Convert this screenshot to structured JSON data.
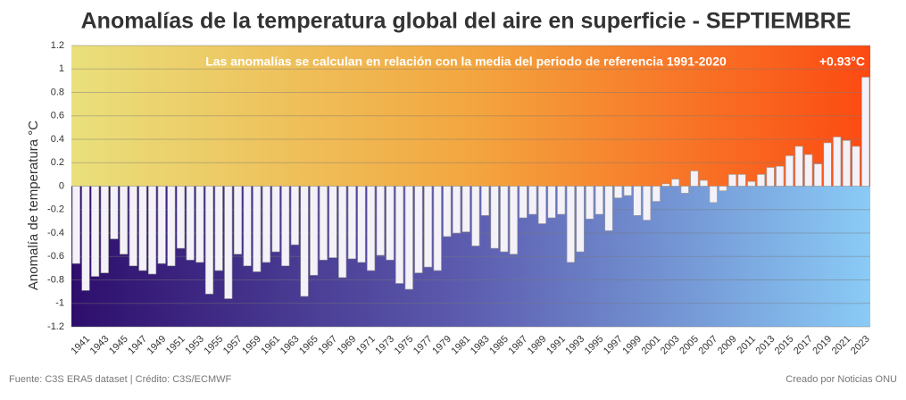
{
  "chart_data": {
    "type": "bar",
    "title": "Anomalías de la temperatura global del aire en superficie - SEPTIEMBRE",
    "subtitle": "Las anomalías se calculan en relación con la media del periodo de referencia 1991-2020",
    "annotation": "+0.93°C",
    "y_label": "Anomalía de temperatura °C",
    "source": "Fuente: C3S ERA5 dataset | Crédito: C3S/ECMWF",
    "credit": "Creado por Noticias ONU",
    "categories": [
      null,
      "1941",
      null,
      "1943",
      null,
      "1945",
      null,
      "1947",
      null,
      "1949",
      null,
      "1951",
      null,
      "1953",
      null,
      "1955",
      null,
      "1957",
      null,
      "1959",
      null,
      "1961",
      null,
      "1963",
      null,
      "1965",
      null,
      "1967",
      null,
      "1969",
      null,
      "1971",
      null,
      "1973",
      null,
      "1975",
      null,
      "1977",
      null,
      "1979",
      null,
      "1981",
      null,
      "1983",
      null,
      "1985",
      null,
      "1987",
      null,
      "1989",
      null,
      "1991",
      null,
      "1993",
      null,
      "1995",
      null,
      "1997",
      null,
      "1999",
      null,
      "2001",
      null,
      "2003",
      null,
      "2005",
      null,
      "2007",
      null,
      "2009",
      null,
      "2011",
      null,
      "2013",
      null,
      "2015",
      null,
      "2017",
      null,
      "2019",
      null,
      "2021",
      null,
      "2023"
    ],
    "values": [
      -0.66,
      -0.89,
      -0.77,
      -0.74,
      -0.45,
      -0.58,
      -0.68,
      -0.72,
      -0.75,
      -0.66,
      -0.68,
      -0.53,
      -0.63,
      -0.65,
      -0.92,
      -0.72,
      -0.96,
      -0.58,
      -0.68,
      -0.73,
      -0.65,
      -0.56,
      -0.68,
      -0.5,
      -0.94,
      -0.76,
      -0.63,
      -0.61,
      -0.78,
      -0.62,
      -0.65,
      -0.72,
      -0.59,
      -0.63,
      -0.83,
      -0.88,
      -0.74,
      -0.69,
      -0.72,
      -0.43,
      -0.4,
      -0.39,
      -0.51,
      -0.25,
      -0.53,
      -0.56,
      -0.58,
      -0.27,
      -0.24,
      -0.32,
      -0.27,
      -0.24,
      -0.65,
      -0.56,
      -0.28,
      -0.24,
      -0.38,
      -0.1,
      -0.08,
      -0.25,
      -0.29,
      -0.13,
      0.02,
      0.06,
      -0.06,
      0.13,
      0.05,
      -0.14,
      -0.04,
      0.1,
      0.1,
      0.04,
      0.1,
      0.16,
      0.17,
      0.26,
      0.34,
      0.27,
      0.19,
      0.37,
      0.42,
      0.39,
      0.34,
      0.93
    ],
    "color": "#f4f1f8",
    "ylim": [
      -1.2,
      1.2
    ],
    "yticks": [
      1.2,
      1,
      0.8,
      0.6,
      0.4,
      0.2,
      0,
      -0.2,
      -0.4,
      -0.6,
      -0.8,
      -1,
      -1.2
    ],
    "grid": true
  }
}
